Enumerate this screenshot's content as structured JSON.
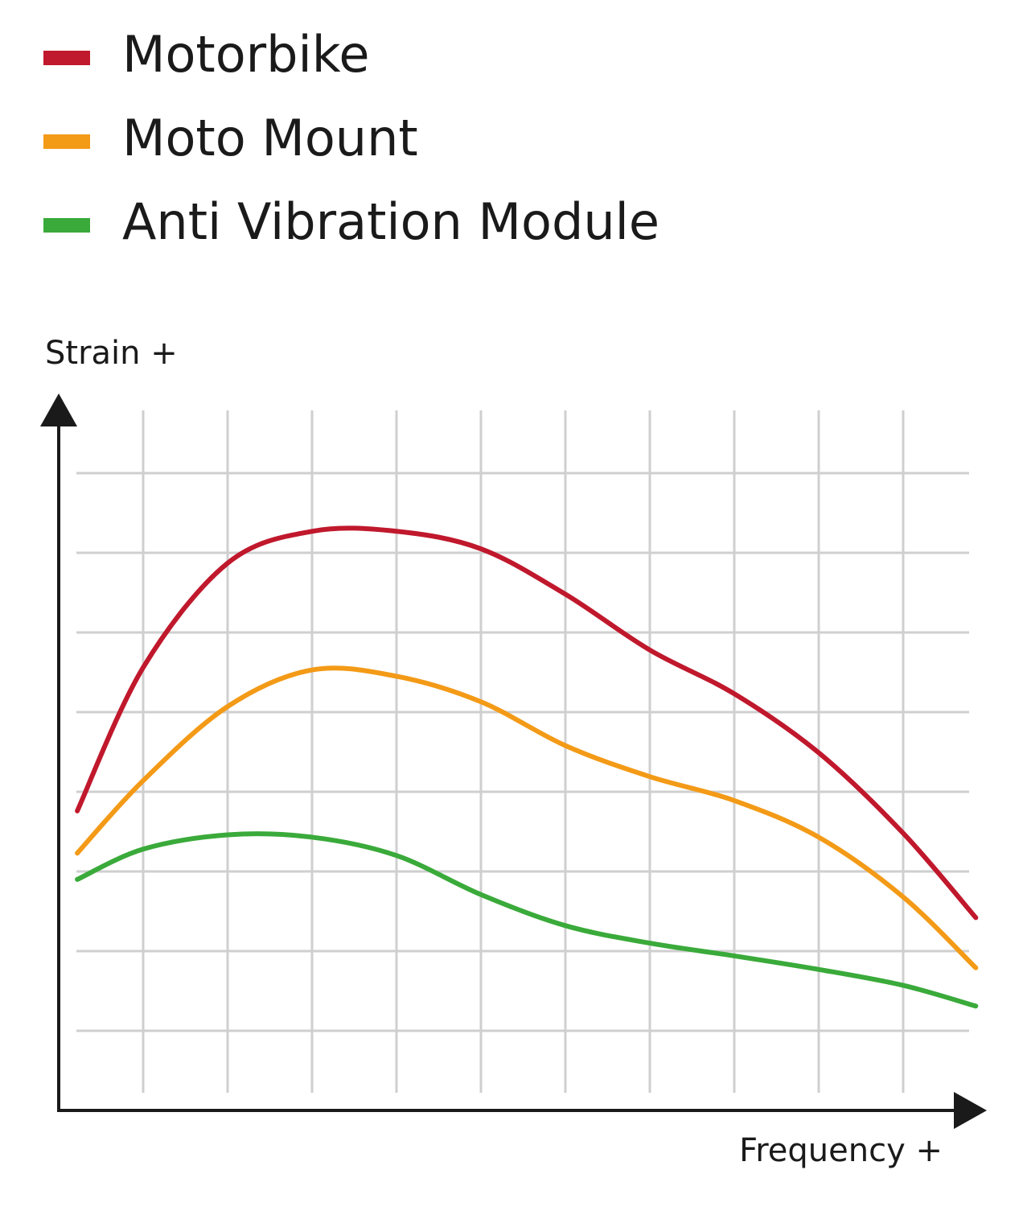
{
  "chart_data": {
    "type": "line",
    "y_label": "Strain +",
    "x_label": "Frequency +",
    "x": [
      0.22,
      1,
      2,
      3,
      4,
      5,
      6,
      7,
      8,
      9,
      10,
      10.86
    ],
    "series": [
      {
        "name": "Motorbike",
        "color": "#c0182c",
        "values": [
          3.76,
          5.56,
          6.87,
          7.27,
          7.27,
          7.05,
          6.48,
          5.78,
          5.23,
          4.49,
          3.48,
          2.42
        ]
      },
      {
        "name": "Moto Mount",
        "color": "#f39a17",
        "values": [
          3.23,
          4.14,
          5.07,
          5.53,
          5.45,
          5.13,
          4.58,
          4.19,
          3.89,
          3.43,
          2.68,
          1.79
        ]
      },
      {
        "name": "Anti Vibration Module",
        "color": "#3aaa3a",
        "values": [
          2.9,
          3.28,
          3.46,
          3.43,
          3.2,
          2.71,
          2.32,
          2.1,
          1.94,
          1.77,
          1.57,
          1.31
        ]
      }
    ],
    "xlim": [
      0,
      11
    ],
    "ylim": [
      0,
      9
    ],
    "xticks": [
      1,
      2,
      3,
      4,
      5,
      6,
      7,
      8,
      9,
      10
    ],
    "yticks": [
      1,
      2,
      3,
      4,
      5,
      6,
      7,
      8
    ],
    "grid": true,
    "legend": "top-left"
  }
}
